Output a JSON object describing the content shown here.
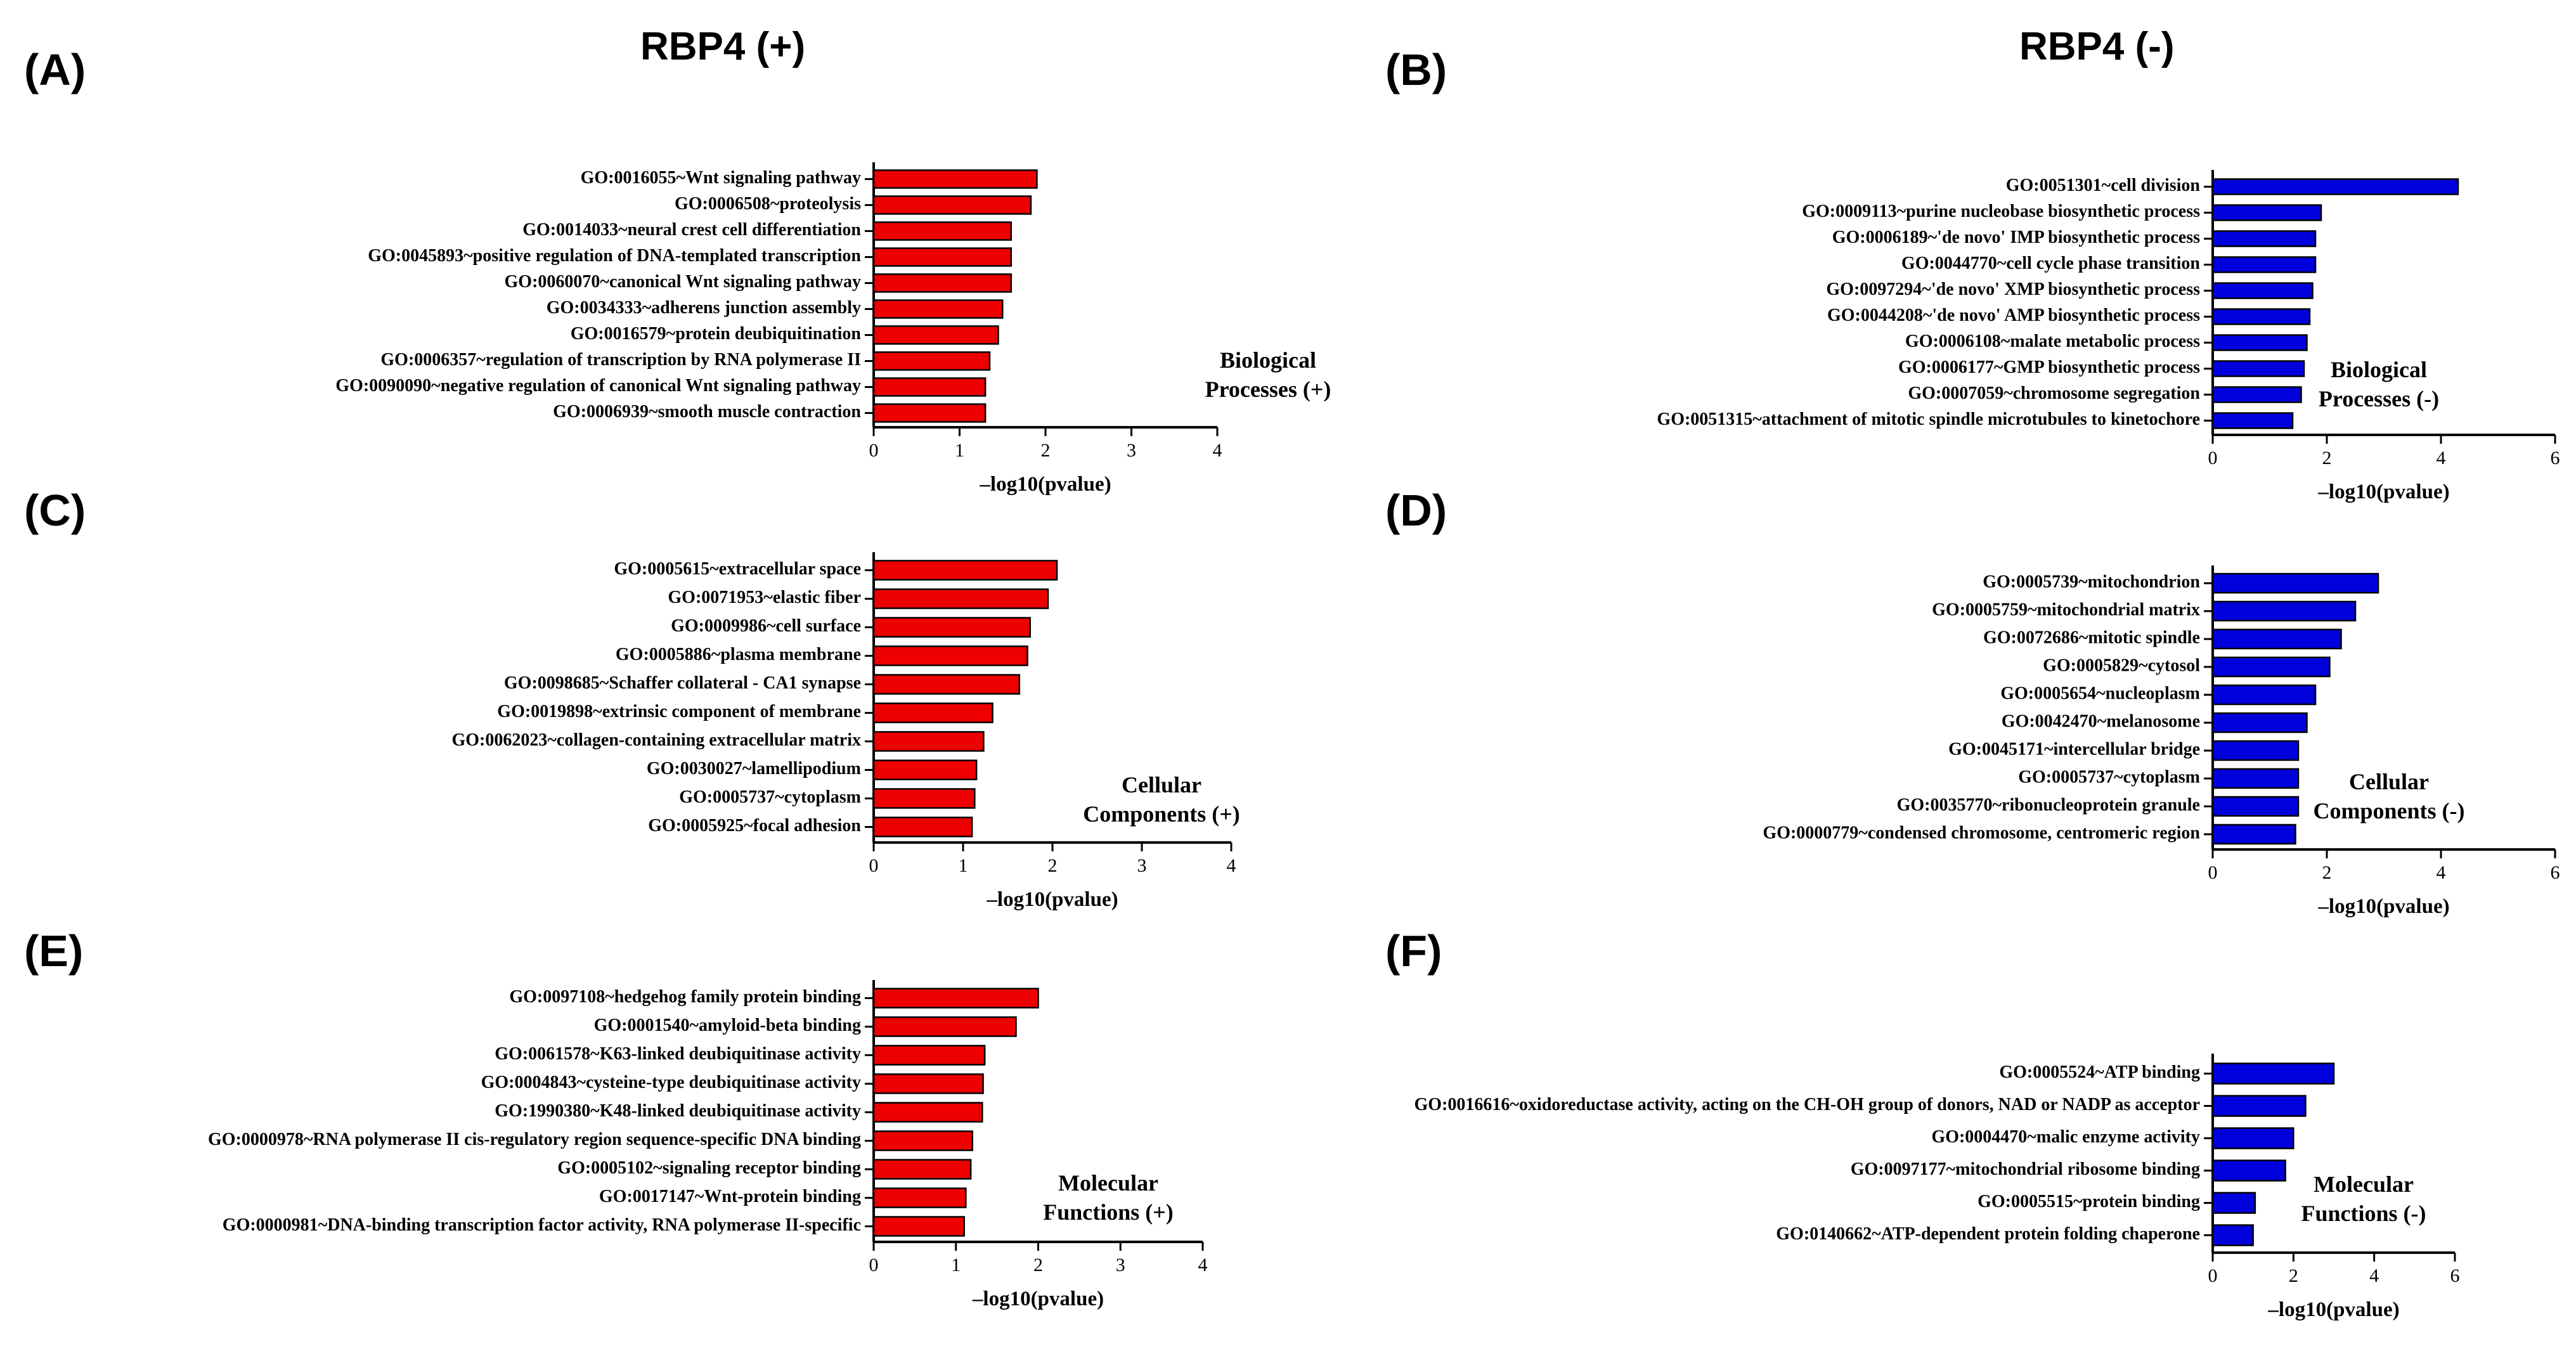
{
  "headers": {
    "left_title": "RBP4 (+)",
    "right_title": "RBP4 (-)"
  },
  "colors": {
    "positive": "#ee0000",
    "negative": "#0000dd",
    "axis": "#000000"
  },
  "chart_data": [
    {
      "id": "A",
      "panel_label": "(A)",
      "type": "bar",
      "orientation": "horizontal",
      "category": "Biological Processes (+)",
      "label_line1": "Biological",
      "label_line2": "Processes (+)",
      "xlabel": "–log10(pvalue)",
      "xlim": [
        0,
        4
      ],
      "xticks": [
        0,
        1,
        2,
        3,
        4
      ],
      "color": "#ee0000",
      "categories": [
        "GO:0016055~Wnt signaling pathway",
        "GO:0006508~proteolysis",
        "GO:0014033~neural crest cell differentiation",
        "GO:0045893~positive regulation of DNA-templated transcription",
        "GO:0060070~canonical Wnt signaling pathway",
        "GO:0034333~adherens junction assembly",
        "GO:0016579~protein deubiquitination",
        "GO:0006357~regulation of transcription by RNA polymerase II",
        "GO:0090090~negative regulation of canonical Wnt signaling pathway",
        "GO:0006939~smooth muscle contraction"
      ],
      "values": [
        1.9,
        1.83,
        1.6,
        1.6,
        1.6,
        1.5,
        1.45,
        1.35,
        1.3,
        1.3
      ]
    },
    {
      "id": "B",
      "panel_label": "(B)",
      "type": "bar",
      "orientation": "horizontal",
      "category": "Biological Processes (-)",
      "label_line1": "Biological",
      "label_line2": "Processes (-)",
      "xlabel": "–log10(pvalue)",
      "xlim": [
        0,
        6
      ],
      "xticks": [
        0,
        2,
        4,
        6
      ],
      "color": "#0000dd",
      "categories": [
        "GO:0051301~cell division",
        "GO:0009113~purine nucleobase biosynthetic process",
        "GO:0006189~'de novo' IMP biosynthetic process",
        "GO:0044770~cell cycle phase transition",
        "GO:0097294~'de novo' XMP biosynthetic process",
        "GO:0044208~'de novo' AMP biosynthetic process",
        "GO:0006108~malate metabolic process",
        "GO:0006177~GMP biosynthetic process",
        "GO:0007059~chromosome segregation",
        "GO:0051315~attachment of mitotic spindle microtubules to kinetochore"
      ],
      "values": [
        4.3,
        1.9,
        1.8,
        1.8,
        1.75,
        1.7,
        1.65,
        1.6,
        1.55,
        1.4
      ]
    },
    {
      "id": "C",
      "panel_label": "(C)",
      "type": "bar",
      "orientation": "horizontal",
      "category": "Cellular Components (+)",
      "label_line1": "Cellular",
      "label_line2": "Components (+)",
      "xlabel": "–log10(pvalue)",
      "xlim": [
        0,
        4
      ],
      "xticks": [
        0,
        1,
        2,
        3,
        4
      ],
      "color": "#ee0000",
      "categories": [
        "GO:0005615~extracellular space",
        "GO:0071953~elastic fiber",
        "GO:0009986~cell surface",
        "GO:0005886~plasma membrane",
        "GO:0098685~Schaffer collateral - CA1 synapse",
        "GO:0019898~extrinsic component of membrane",
        "GO:0062023~collagen-containing extracellular matrix",
        "GO:0030027~lamellipodium",
        "GO:0005737~cytoplasm",
        "GO:0005925~focal adhesion"
      ],
      "values": [
        2.05,
        1.95,
        1.75,
        1.72,
        1.63,
        1.33,
        1.23,
        1.15,
        1.13,
        1.1
      ]
    },
    {
      "id": "D",
      "panel_label": "(D)",
      "type": "bar",
      "orientation": "horizontal",
      "category": "Cellular Components (-)",
      "label_line1": "Cellular",
      "label_line2": "Components (-)",
      "xlabel": "–log10(pvalue)",
      "xlim": [
        0,
        6
      ],
      "xticks": [
        0,
        2,
        4,
        6
      ],
      "color": "#0000dd",
      "categories": [
        "GO:0005739~mitochondrion",
        "GO:0005759~mitochondrial matrix",
        "GO:0072686~mitotic spindle",
        "GO:0005829~cytosol",
        "GO:0005654~nucleoplasm",
        "GO:0042470~melanosome",
        "GO:0045171~intercellular bridge",
        "GO:0005737~cytoplasm",
        "GO:0035770~ribonucleoprotein granule",
        "GO:0000779~condensed chromosome, centromeric region"
      ],
      "values": [
        2.9,
        2.5,
        2.25,
        2.05,
        1.8,
        1.65,
        1.5,
        1.5,
        1.5,
        1.45
      ]
    },
    {
      "id": "E",
      "panel_label": "(E)",
      "type": "bar",
      "orientation": "horizontal",
      "category": "Molecular Functions (+)",
      "label_line1": "Molecular",
      "label_line2": "Functions (+)",
      "xlabel": "–log10(pvalue)",
      "xlim": [
        0,
        4
      ],
      "xticks": [
        0,
        1,
        2,
        3,
        4
      ],
      "color": "#ee0000",
      "categories": [
        "GO:0097108~hedgehog family protein binding",
        "GO:0001540~amyloid-beta binding",
        "GO:0061578~K63-linked deubiquitinase activity",
        "GO:0004843~cysteine-type deubiquitinase activity",
        "GO:1990380~K48-linked deubiquitinase activity",
        "GO:0000978~RNA polymerase II cis-regulatory region sequence-specific DNA binding",
        "GO:0005102~signaling receptor binding",
        "GO:0017147~Wnt-protein binding",
        "GO:0000981~DNA-binding transcription factor activity, RNA polymerase II-specific"
      ],
      "values": [
        2.0,
        1.73,
        1.35,
        1.33,
        1.32,
        1.2,
        1.18,
        1.12,
        1.1
      ]
    },
    {
      "id": "F",
      "panel_label": "(F)",
      "type": "bar",
      "orientation": "horizontal",
      "category": "Molecular Functions (-)",
      "label_line1": "Molecular",
      "label_line2": "Functions (-)",
      "xlabel": "–log10(pvalue)",
      "xlim": [
        0,
        6
      ],
      "xticks": [
        0,
        2,
        4,
        6
      ],
      "color": "#0000dd",
      "categories": [
        "GO:0005524~ATP binding",
        "GO:0016616~oxidoreductase activity, acting on the CH-OH group of donors, NAD or NADP as acceptor",
        "GO:0004470~malic enzyme activity",
        "GO:0097177~mitochondrial ribosome binding",
        "GO:0005515~protein binding",
        "GO:0140662~ATP-dependent protein folding chaperone"
      ],
      "values": [
        3.0,
        2.3,
        2.0,
        1.8,
        1.05,
        1.0
      ]
    }
  ]
}
